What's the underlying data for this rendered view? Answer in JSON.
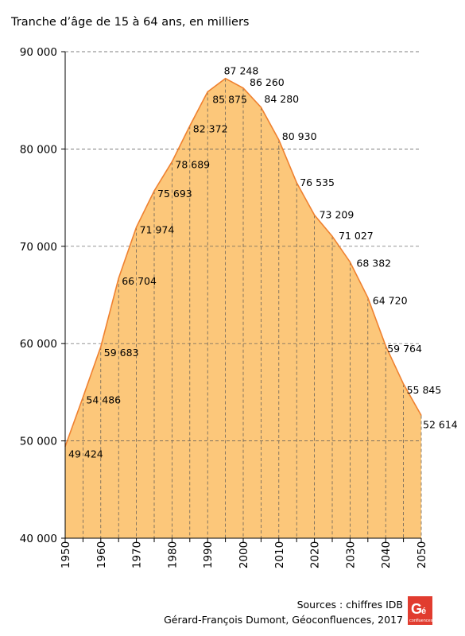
{
  "chart_data": {
    "type": "area",
    "title": "Tranche d’âge de 15 à 64 ans, en milliers",
    "x": [
      1950,
      1955,
      1960,
      1965,
      1970,
      1975,
      1980,
      1985,
      1990,
      1995,
      2000,
      2005,
      2010,
      2015,
      2020,
      2025,
      2030,
      2035,
      2040,
      2045,
      2050
    ],
    "values": [
      49424,
      54486,
      59683,
      66704,
      71974,
      75693,
      78689,
      82372,
      85875,
      87248,
      86260,
      84280,
      80930,
      76535,
      73209,
      71027,
      68382,
      64720,
      59764,
      55845,
      52614
    ],
    "value_labels": [
      "49 424",
      "54 486",
      "59 683",
      "66 704",
      "71 974",
      "75 693",
      "78 689",
      "82 372",
      "85 875",
      "87 248",
      "86 260",
      "84 280",
      "80 930",
      "76 535",
      "73 209",
      "71 027",
      "68 382",
      "64 720",
      "59 764",
      "55 845",
      "52 614"
    ],
    "ylim": [
      40000,
      90000
    ],
    "yticks": [
      40000,
      50000,
      60000,
      70000,
      80000,
      90000
    ],
    "ytick_labels": [
      "40 000",
      "50 000",
      "60 000",
      "70 000",
      "80 000",
      "90 000"
    ],
    "xticks": [
      1950,
      1960,
      1970,
      1980,
      1990,
      2000,
      2010,
      2020,
      2030,
      2040,
      2050
    ],
    "xtick_labels": [
      "1950",
      "1960",
      "1970",
      "1980",
      "1990",
      "2000",
      "2010",
      "2020",
      "2030",
      "2040",
      "2050"
    ],
    "grid": "horizontal dashed + vertical dashed every 5 years",
    "fill_color": "#fcc77a",
    "line_color": "#ef8130"
  },
  "footer": {
    "sources": "Sources : chiffres IDB",
    "author": "Gérard-François Dumont, Géoconfluences, 2017"
  },
  "logo": {
    "letters": "Gé",
    "sub": "confluences",
    "color": "#e13c2f"
  }
}
